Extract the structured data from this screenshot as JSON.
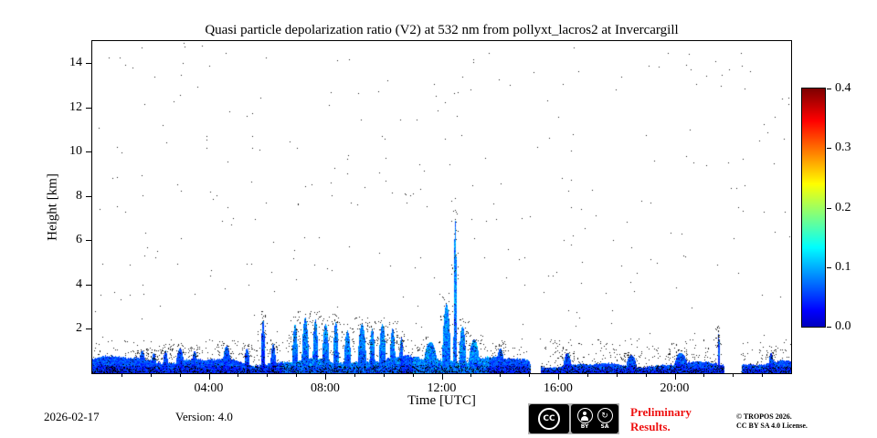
{
  "colors": {
    "preliminary": "#ee1111",
    "axis": "#000000",
    "background": "#ffffff"
  },
  "footer": {
    "date": "2026-02-17",
    "version": "Version: 4.0",
    "preliminary": {
      "line1": "Preliminary",
      "line2": "Results."
    },
    "license": {
      "line1": "© TROPOS 2026.",
      "line2": "CC BY SA 4.0 License."
    },
    "cc": {
      "cc": "CC",
      "by": "BY",
      "sa": "SA",
      "sa_icon": "↻"
    }
  },
  "chart_data": {
    "type": "heatmap",
    "title": "Quasi particle depolarization ratio (V2) at 532 nm from pollyxt_lacros2 at Invercargill",
    "xlabel": "Time [UTC]",
    "ylabel": "Height [km]",
    "xlim_hours": [
      0,
      24
    ],
    "ylim_km": [
      0,
      15
    ],
    "x_ticks": [
      {
        "t": 4,
        "label": "04:00"
      },
      {
        "t": 8,
        "label": "08:00"
      },
      {
        "t": 12,
        "label": "12:00"
      },
      {
        "t": 16,
        "label": "16:00"
      },
      {
        "t": 20,
        "label": "20:00"
      }
    ],
    "y_ticks": [
      2,
      4,
      6,
      8,
      10,
      12,
      14
    ],
    "colorbar": {
      "vmin": 0.0,
      "vmax": 0.4,
      "ticks": [
        "0.0",
        "0.1",
        "0.2",
        "0.3",
        "0.4"
      ],
      "colormap": "jet",
      "position": "right"
    },
    "grid": false,
    "description": "Near-surface aerosol/depolarization layer (values ~0.0-0.12, blue-cyan) below ~1 km all day; convective plumes to ~2.5 km between 06:00-10:30; narrow column to ~6.9 km near 12:30; scattered black noise pixels throughout; data gaps near 15:10-15:25 and 21:40-22:20",
    "surface_layer": {
      "base_top_km": 0.55,
      "variation_km": 0.25,
      "evening_factor": 0.7,
      "typical_value_range": [
        0.0,
        0.12
      ]
    },
    "plumes": [
      {
        "t": 1.7,
        "w": 0.25,
        "top": 1.0
      },
      {
        "t": 2.1,
        "w": 0.2,
        "top": 0.9
      },
      {
        "t": 2.5,
        "w": 0.2,
        "top": 1.0
      },
      {
        "t": 3.0,
        "w": 0.3,
        "top": 1.1
      },
      {
        "t": 3.5,
        "w": 0.2,
        "top": 1.0
      },
      {
        "t": 4.6,
        "w": 0.3,
        "top": 1.2
      },
      {
        "t": 5.3,
        "w": 0.2,
        "top": 1.1
      },
      {
        "t": 5.85,
        "w": 0.15,
        "top": 2.4
      },
      {
        "t": 6.2,
        "w": 0.2,
        "top": 1.3
      },
      {
        "t": 6.95,
        "w": 0.2,
        "top": 2.2
      },
      {
        "t": 7.3,
        "w": 0.25,
        "top": 2.5
      },
      {
        "t": 7.65,
        "w": 0.2,
        "top": 2.4
      },
      {
        "t": 8.0,
        "w": 0.25,
        "top": 2.2
      },
      {
        "t": 8.35,
        "w": 0.2,
        "top": 2.3
      },
      {
        "t": 8.75,
        "w": 0.25,
        "top": 1.9
      },
      {
        "t": 9.25,
        "w": 0.3,
        "top": 2.2
      },
      {
        "t": 9.6,
        "w": 0.2,
        "top": 2.0
      },
      {
        "t": 9.95,
        "w": 0.25,
        "top": 2.2
      },
      {
        "t": 10.3,
        "w": 0.2,
        "top": 2.0
      },
      {
        "t": 10.6,
        "w": 0.15,
        "top": 1.6
      },
      {
        "t": 11.6,
        "w": 0.5,
        "top": 1.4
      },
      {
        "t": 12.15,
        "w": 0.3,
        "top": 3.1
      },
      {
        "t": 12.45,
        "w": 0.12,
        "top": 6.9
      },
      {
        "t": 12.7,
        "w": 0.25,
        "top": 2.1
      },
      {
        "t": 13.1,
        "w": 0.4,
        "top": 1.5
      },
      {
        "t": 14.0,
        "w": 0.3,
        "top": 1.1
      },
      {
        "t": 16.3,
        "w": 0.3,
        "top": 0.9
      },
      {
        "t": 18.5,
        "w": 0.4,
        "top": 0.8
      },
      {
        "t": 20.2,
        "w": 0.5,
        "top": 0.9
      },
      {
        "t": 21.5,
        "w": 0.08,
        "top": 1.8
      },
      {
        "t": 23.3,
        "w": 0.2,
        "top": 0.9
      }
    ],
    "enhanced_windows": [
      {
        "t0": 6.5,
        "t1": 10.6,
        "dv": 0.04
      },
      {
        "t0": 11.0,
        "t1": 13.6,
        "dv": 0.05
      }
    ],
    "gaps_hours": [
      [
        15.05,
        15.4
      ],
      [
        21.7,
        22.3
      ]
    ],
    "noise": {
      "sparse_dots": 320,
      "low_level_dots": 1600,
      "plume_halo_dots": 25
    }
  }
}
